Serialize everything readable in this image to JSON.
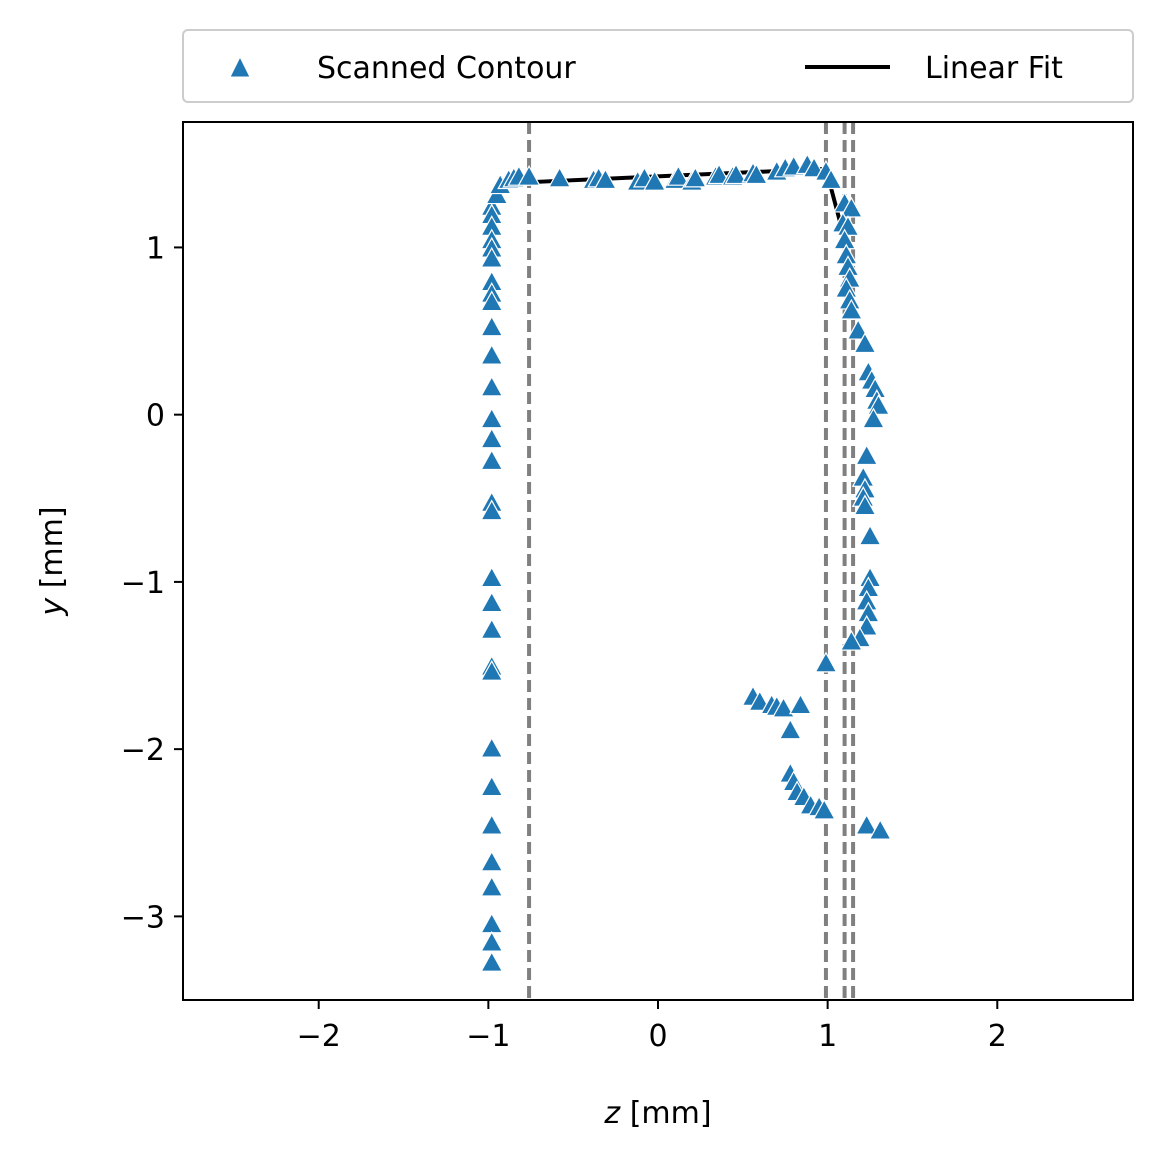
{
  "chart_data": {
    "type": "scatter",
    "xlabel": {
      "var": "z",
      "unit": " [mm]"
    },
    "ylabel": {
      "var": "y",
      "unit": " [mm]"
    },
    "xlim": [
      -2.8,
      2.8
    ],
    "ylim": [
      -3.5,
      1.75
    ],
    "xticks": [
      -2,
      -1,
      0,
      1,
      2
    ],
    "yticks": [
      -3,
      -2,
      -1,
      0,
      1
    ],
    "grid": false,
    "legend_position": "top, above plot",
    "colors": {
      "scatter": "#1f77b4",
      "fit": "#000000",
      "vlines": "#808080"
    },
    "vlines": [
      -0.76,
      0.99,
      1.1,
      1.15
    ],
    "series": [
      {
        "name": "Scanned Contour",
        "kind": "scatter",
        "marker": "triangle-up",
        "points": [
          [
            -0.98,
            1.24
          ],
          [
            -0.98,
            1.19
          ],
          [
            -0.98,
            1.12
          ],
          [
            -0.98,
            1.04
          ],
          [
            -0.98,
            0.99
          ],
          [
            -0.98,
            0.93
          ],
          [
            -0.98,
            0.79
          ],
          [
            -0.98,
            0.72
          ],
          [
            -0.98,
            0.67
          ],
          [
            -0.98,
            0.52
          ],
          [
            -0.98,
            0.35
          ],
          [
            -0.98,
            0.16
          ],
          [
            -0.98,
            -0.03
          ],
          [
            -0.98,
            -0.15
          ],
          [
            -0.98,
            -0.28
          ],
          [
            -0.98,
            -0.53
          ],
          [
            -0.98,
            -0.58
          ],
          [
            -0.98,
            -0.98
          ],
          [
            -0.98,
            -1.13
          ],
          [
            -0.98,
            -1.29
          ],
          [
            -0.98,
            -1.51
          ],
          [
            -0.98,
            -1.54
          ],
          [
            -0.98,
            -2.0
          ],
          [
            -0.98,
            -2.23
          ],
          [
            -0.98,
            -2.46
          ],
          [
            -0.98,
            -2.68
          ],
          [
            -0.98,
            -2.83
          ],
          [
            -0.98,
            -3.05
          ],
          [
            -0.98,
            -3.16
          ],
          [
            -0.98,
            -3.28
          ],
          [
            -0.95,
            1.31
          ],
          [
            -0.93,
            1.37
          ],
          [
            -0.88,
            1.4
          ],
          [
            -0.85,
            1.41
          ],
          [
            -0.82,
            1.42
          ],
          [
            -0.76,
            1.42
          ],
          [
            -0.58,
            1.41
          ],
          [
            -0.38,
            1.4
          ],
          [
            -0.35,
            1.41
          ],
          [
            -0.31,
            1.4
          ],
          [
            -0.12,
            1.39
          ],
          [
            -0.08,
            1.41
          ],
          [
            -0.02,
            1.39
          ],
          [
            0.1,
            1.4
          ],
          [
            0.12,
            1.42
          ],
          [
            0.2,
            1.39
          ],
          [
            0.22,
            1.41
          ],
          [
            0.34,
            1.42
          ],
          [
            0.36,
            1.43
          ],
          [
            0.44,
            1.42
          ],
          [
            0.46,
            1.43
          ],
          [
            0.56,
            1.44
          ],
          [
            0.58,
            1.43
          ],
          [
            0.7,
            1.45
          ],
          [
            0.75,
            1.47
          ],
          [
            0.8,
            1.48
          ],
          [
            0.88,
            1.49
          ],
          [
            0.92,
            1.47
          ],
          [
            0.99,
            1.45
          ],
          [
            1.02,
            1.4
          ],
          [
            1.1,
            1.26
          ],
          [
            1.14,
            1.23
          ],
          [
            1.09,
            1.14
          ],
          [
            1.12,
            1.12
          ],
          [
            1.1,
            1.04
          ],
          [
            1.11,
            0.95
          ],
          [
            1.12,
            0.88
          ],
          [
            1.13,
            0.81
          ],
          [
            1.11,
            0.75
          ],
          [
            1.13,
            0.68
          ],
          [
            1.14,
            0.62
          ],
          [
            1.18,
            0.5
          ],
          [
            1.22,
            0.42
          ],
          [
            1.24,
            0.25
          ],
          [
            1.26,
            0.2
          ],
          [
            1.28,
            0.15
          ],
          [
            1.29,
            0.08
          ],
          [
            1.3,
            0.05
          ],
          [
            1.27,
            -0.03
          ],
          [
            1.23,
            -0.25
          ],
          [
            1.21,
            -0.38
          ],
          [
            1.22,
            -0.45
          ],
          [
            1.21,
            -0.5
          ],
          [
            1.22,
            -0.55
          ],
          [
            1.25,
            -0.73
          ],
          [
            1.25,
            -0.98
          ],
          [
            1.24,
            -1.04
          ],
          [
            1.23,
            -1.12
          ],
          [
            1.24,
            -1.19
          ],
          [
            1.23,
            -1.27
          ],
          [
            1.19,
            -1.34
          ],
          [
            1.14,
            -1.36
          ],
          [
            0.99,
            -1.49
          ],
          [
            0.56,
            -1.69
          ],
          [
            0.6,
            -1.72
          ],
          [
            0.67,
            -1.74
          ],
          [
            0.7,
            -1.75
          ],
          [
            0.74,
            -1.76
          ],
          [
            0.84,
            -1.74
          ],
          [
            0.78,
            -1.89
          ],
          [
            0.78,
            -2.15
          ],
          [
            0.8,
            -2.2
          ],
          [
            0.82,
            -2.26
          ],
          [
            0.86,
            -2.29
          ],
          [
            0.9,
            -2.34
          ],
          [
            0.95,
            -2.35
          ],
          [
            0.98,
            -2.37
          ],
          [
            1.23,
            -2.46
          ],
          [
            1.31,
            -2.49
          ]
        ]
      },
      {
        "name": "Linear Fit",
        "kind": "line",
        "segments": [
          [
            [
              -0.76,
              1.39
            ],
            [
              0.99,
              1.47
            ]
          ],
          [
            [
              0.99,
              1.47
            ],
            [
              1.1,
              1.05
            ]
          ],
          [
            [
              1.1,
              1.05
            ],
            [
              1.15,
              0.6
            ]
          ]
        ]
      }
    ]
  }
}
